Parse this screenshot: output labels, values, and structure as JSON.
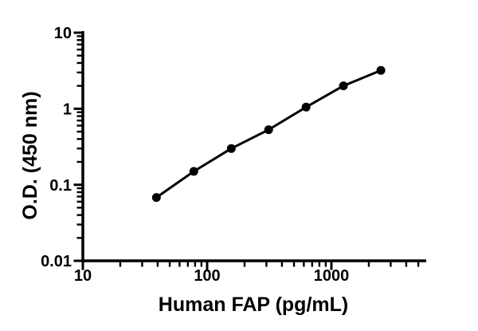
{
  "figure": {
    "background_color": "#ffffff",
    "foreground_color": "#000000"
  },
  "chart_data": {
    "type": "line",
    "subtype": "scatter-with-connecting-line",
    "title": "",
    "xlabel": "Human FAP (pg/mL)",
    "ylabel": "O.D. (450 nm)",
    "xscale": "log",
    "yscale": "log",
    "xlim": [
      10,
      5800
    ],
    "ylim": [
      0.01,
      10
    ],
    "grid": false,
    "legend": false,
    "x_major_ticks": {
      "values": [
        10,
        100,
        1000
      ],
      "labels": [
        "10",
        "100",
        "1000"
      ]
    },
    "x_minor_ticks": [
      20,
      30,
      40,
      50,
      60,
      70,
      80,
      90,
      200,
      300,
      400,
      500,
      600,
      700,
      800,
      900,
      2000,
      3000,
      4000,
      5000
    ],
    "y_major_ticks": {
      "values": [
        10,
        1,
        0.1,
        0.01
      ],
      "labels": [
        "10",
        "1",
        "0.1",
        "0.01"
      ]
    },
    "y_minor_ticks": [
      0.02,
      0.03,
      0.04,
      0.05,
      0.06,
      0.07,
      0.08,
      0.09,
      0.2,
      0.3,
      0.4,
      0.5,
      0.6,
      0.7,
      0.8,
      0.9,
      2,
      3,
      4,
      5,
      6,
      7,
      8,
      9
    ],
    "series": [
      {
        "marker": "filled-circle",
        "color": "#000000",
        "x": [
          39.06,
          78.13,
          156.3,
          312.5,
          625,
          1250,
          2500
        ],
        "y": [
          0.068,
          0.15,
          0.3,
          0.53,
          1.05,
          2.0,
          3.2
        ]
      }
    ]
  }
}
